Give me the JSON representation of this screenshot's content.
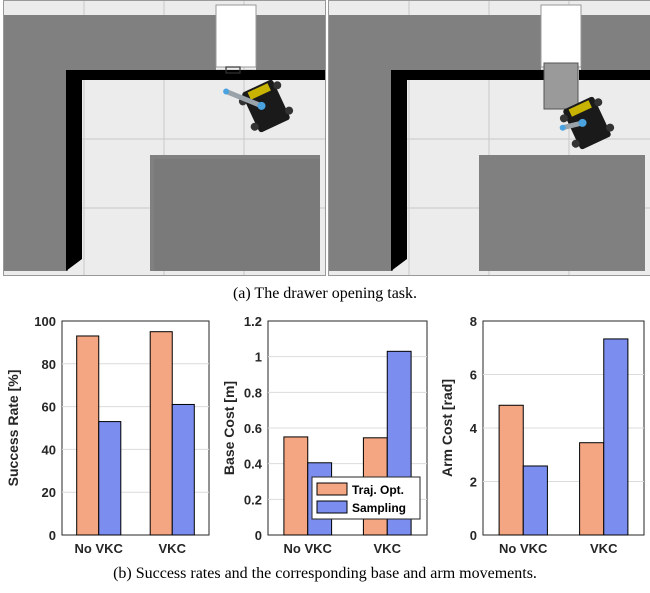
{
  "captions": {
    "a": "(a) The drawer opening task.",
    "b": "(b) Success rates and the corresponding base and arm movements."
  },
  "colors": {
    "traj_opt": "#f4a582",
    "sampling": "#7b8ef0",
    "floor": "#ececec",
    "furniture": "#808080",
    "wall": "#000000"
  },
  "chart_data": [
    {
      "type": "bar",
      "categories": [
        "No VKC",
        "VKC"
      ],
      "ylabel": "Success Rate [%]",
      "ylim": [
        0,
        100
      ],
      "yticks": [
        "0",
        "20",
        "40",
        "60",
        "80",
        "100"
      ],
      "series": [
        {
          "name": "Traj. Opt.",
          "values": [
            93,
            95
          ]
        },
        {
          "name": "Sampling",
          "values": [
            53,
            61
          ]
        }
      ],
      "grid": true
    },
    {
      "type": "bar",
      "categories": [
        "No VKC",
        "VKC"
      ],
      "ylabel": "Base Cost [m]",
      "ylim": [
        0,
        1.2
      ],
      "yticks": [
        "0",
        "0.2",
        "0.4",
        "0.6",
        "0.8",
        "1",
        "1.2"
      ],
      "series": [
        {
          "name": "Traj. Opt.",
          "values": [
            0.55,
            0.545
          ]
        },
        {
          "name": "Sampling",
          "values": [
            0.405,
            1.03
          ]
        }
      ],
      "legend": {
        "position": "bottom-left",
        "entries": [
          "Traj. Opt.",
          "Sampling"
        ]
      },
      "grid": true
    },
    {
      "type": "bar",
      "categories": [
        "No VKC",
        "VKC"
      ],
      "ylabel": "Arm Cost [rad]",
      "ylim": [
        0,
        8
      ],
      "yticks": [
        "0",
        "2",
        "4",
        "6",
        "8"
      ],
      "series": [
        {
          "name": "Traj. Opt.",
          "values": [
            4.85,
            3.45
          ]
        },
        {
          "name": "Sampling",
          "values": [
            2.58,
            7.33
          ]
        }
      ],
      "grid": true
    }
  ]
}
